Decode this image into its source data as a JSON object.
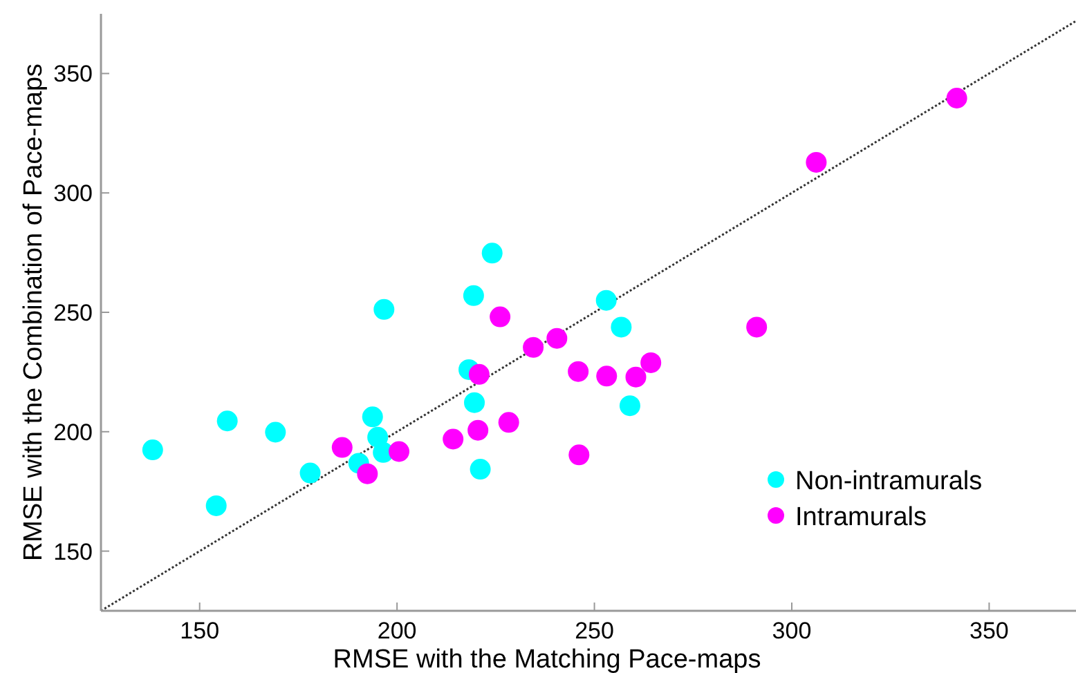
{
  "chart_data": {
    "type": "scatter",
    "xlabel": "RMSE with the Matching Pace-maps",
    "ylabel": "RMSE with the Combination of Pace-maps",
    "xlim": [
      125,
      372
    ],
    "ylim": [
      125,
      375
    ],
    "xticks": [
      150,
      200,
      250,
      300,
      350
    ],
    "yticks": [
      150,
      200,
      250,
      300,
      350
    ],
    "legend": "bottom right",
    "marker": "circle",
    "grid": false,
    "series": [
      {
        "type": "line",
        "color": "#333333",
        "line_style": "dotted",
        "marker": "none",
        "x": [
          125,
          372
        ],
        "values": [
          125,
          372
        ]
      },
      {
        "name": "Non-intramurals",
        "color": "#00ffff",
        "x": [
          138.1,
          154.2,
          157,
          169.2,
          178,
          190.3,
          193.8,
          195.1,
          196.5,
          218.2,
          219.6,
          221.1,
          196.7,
          219.4,
          224.1,
          253,
          256.8,
          259
        ],
        "values": [
          192.4,
          169,
          204.5,
          199.8,
          182.7,
          186.8,
          206.2,
          197.7,
          191.3,
          226,
          212.2,
          184.3,
          251.2,
          257,
          274.8,
          255,
          243.8,
          210.9
        ]
      },
      {
        "name": "Intramurals",
        "color": "#ff00ff",
        "x": [
          186.1,
          192.5,
          200.5,
          214.2,
          220.5,
          228.3,
          220.8,
          234.5,
          226.1,
          240.5,
          306.2,
          341.8,
          245.9,
          253.1,
          260.5,
          264.3,
          291.1,
          246.1
        ],
        "values": [
          193.4,
          182.4,
          191.7,
          196.9,
          200.6,
          203.9,
          224,
          235.3,
          248.1,
          239.1,
          312.8,
          339.7,
          225.2,
          223.3,
          222.9,
          228.9,
          243.8,
          190.3
        ]
      }
    ]
  }
}
